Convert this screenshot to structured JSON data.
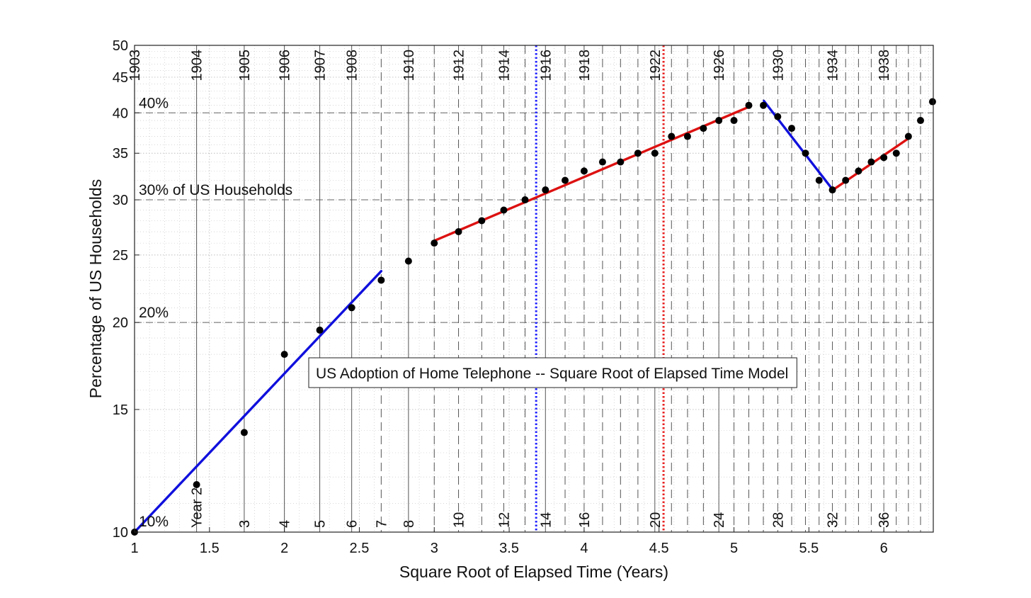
{
  "chart_data": {
    "type": "scatter",
    "title": "US Adoption of Home Telephone -- Square Root of Elapsed Time Model",
    "xlabel": "Square Root of Elapsed Time (Years)",
    "ylabel": "Percentage of US Households",
    "xlim": [
      1,
      6.33
    ],
    "ylim": [
      10,
      50
    ],
    "yscale": "log",
    "grid": true,
    "x_ticks": [
      1,
      1.5,
      2,
      2.5,
      3,
      3.5,
      4,
      4.5,
      5,
      5.5,
      6
    ],
    "x_tick_labels": [
      "1",
      "1.5",
      "2",
      "2.5",
      "3",
      "3.5",
      "4",
      "4.5",
      "5",
      "5.5",
      "6"
    ],
    "y_ticks": [
      10,
      15,
      20,
      25,
      30,
      35,
      40,
      45,
      50
    ],
    "y_tick_labels": [
      "10",
      "15",
      "20",
      "25",
      "30",
      "35",
      "40",
      "45",
      "50"
    ],
    "points": {
      "x": [
        1,
        1.414,
        1.732,
        2,
        2.236,
        2.449,
        2.646,
        2.828,
        3,
        3.162,
        3.317,
        3.464,
        3.606,
        3.742,
        3.873,
        4,
        4.123,
        4.243,
        4.359,
        4.472,
        4.583,
        4.69,
        4.796,
        4.899,
        5,
        5.099,
        5.196,
        5.292,
        5.385,
        5.477,
        5.568,
        5.657,
        5.745,
        5.831,
        5.916,
        6,
        6.083,
        6.164,
        6.245,
        6.325
      ],
      "y": [
        10,
        11.7,
        13.9,
        18,
        19.5,
        21,
        23,
        24.5,
        26,
        27,
        28,
        29,
        30,
        31,
        32,
        33,
        34,
        34,
        35,
        35,
        37,
        37,
        38,
        39,
        39,
        41,
        41,
        39.5,
        38,
        35,
        32,
        31,
        32,
        33,
        34,
        34.5,
        35,
        37,
        39,
        41.5
      ]
    },
    "fit_lines": [
      {
        "color": "#1010dd",
        "x": [
          1,
          2.646
        ],
        "y": [
          10,
          23.7
        ]
      },
      {
        "color": "#dd1111",
        "x": [
          3,
          5.1
        ],
        "y": [
          26.2,
          40.8
        ]
      },
      {
        "color": "#1010dd",
        "x": [
          5.2,
          5.66
        ],
        "y": [
          41.6,
          31
        ]
      },
      {
        "color": "#dd1111",
        "x": [
          5.66,
          6.16
        ],
        "y": [
          31,
          36.7
        ]
      }
    ],
    "year_lines": {
      "solid_x": [
        1,
        1.414,
        1.732,
        2,
        2.236,
        2.449,
        2.828,
        3.742,
        4.472,
        4.899
      ],
      "dashed_x": [
        2.646,
        3,
        3.162,
        3.317,
        3.464,
        3.606,
        3.873,
        4,
        4.123,
        4.243,
        4.359,
        4.583,
        4.69,
        4.796,
        5,
        5.099,
        5.196,
        5.292,
        5.385,
        5.477,
        5.568,
        5.657,
        5.745,
        5.831,
        5.916,
        6,
        6.083,
        6.164,
        6.245
      ]
    },
    "top_year_labels": [
      {
        "x": 1.0,
        "text": "1903"
      },
      {
        "x": 1.414,
        "text": "1904"
      },
      {
        "x": 1.732,
        "text": "1905"
      },
      {
        "x": 2.0,
        "text": "1906"
      },
      {
        "x": 2.236,
        "text": "1907"
      },
      {
        "x": 2.449,
        "text": "1908"
      },
      {
        "x": 2.828,
        "text": "1910"
      },
      {
        "x": 3.162,
        "text": "1912"
      },
      {
        "x": 3.464,
        "text": "1914"
      },
      {
        "x": 3.742,
        "text": "1916"
      },
      {
        "x": 4.0,
        "text": "1918"
      },
      {
        "x": 4.472,
        "text": "1922"
      },
      {
        "x": 4.899,
        "text": "1926"
      },
      {
        "x": 5.292,
        "text": "1930"
      },
      {
        "x": 5.657,
        "text": "1934"
      },
      {
        "x": 6.0,
        "text": "1938"
      }
    ],
    "bottom_year_labels": [
      {
        "x": 1.414,
        "text": "Year 2"
      },
      {
        "x": 1.732,
        "text": "3"
      },
      {
        "x": 2.0,
        "text": "4"
      },
      {
        "x": 2.236,
        "text": "5"
      },
      {
        "x": 2.449,
        "text": "6"
      },
      {
        "x": 2.646,
        "text": "7"
      },
      {
        "x": 2.828,
        "text": "8"
      },
      {
        "x": 3.162,
        "text": "10"
      },
      {
        "x": 3.464,
        "text": "12"
      },
      {
        "x": 3.742,
        "text": "14"
      },
      {
        "x": 4.0,
        "text": "16"
      },
      {
        "x": 4.472,
        "text": "20"
      },
      {
        "x": 4.899,
        "text": "24"
      },
      {
        "x": 5.292,
        "text": "28"
      },
      {
        "x": 5.657,
        "text": "32"
      },
      {
        "x": 6.0,
        "text": "36"
      }
    ],
    "reference_lines": [
      {
        "y": 20,
        "label": "20%"
      },
      {
        "y": 30,
        "label": "30% of US Households"
      },
      {
        "y": 40,
        "label": "40%"
      }
    ],
    "bottom_ref_label": {
      "y": 10,
      "label": "10%"
    },
    "marker_lines": [
      {
        "x": 3.68,
        "color": "#2222ff"
      },
      {
        "x": 4.53,
        "color": "#e82222"
      }
    ],
    "colors": {
      "points": "#000000",
      "grid": "#bdbdbd",
      "axes": "#222222"
    }
  }
}
